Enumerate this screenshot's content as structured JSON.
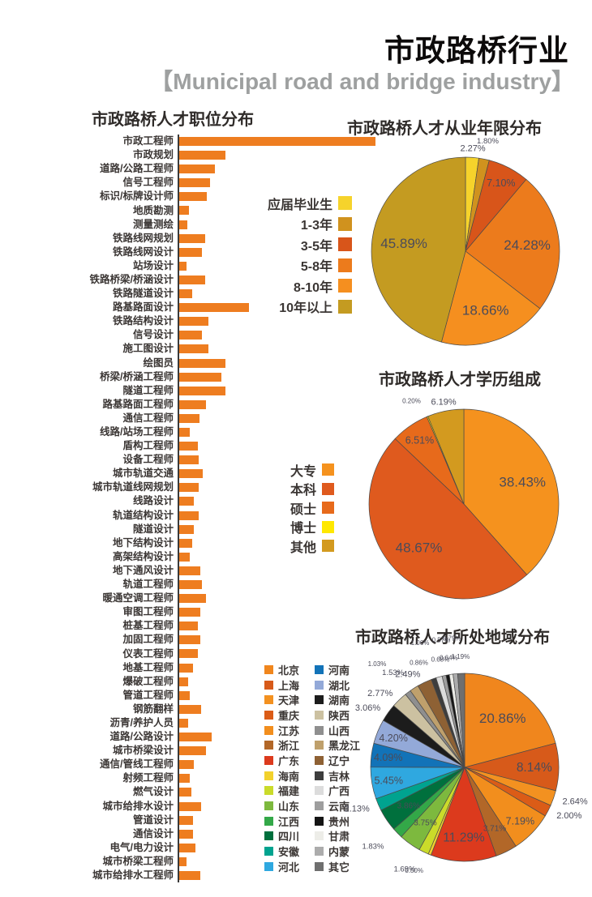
{
  "header": {
    "title": "市政路桥行业",
    "subtitle": "【Municipal road and bridge industry】"
  },
  "colors": {
    "bar": "#ee7d20",
    "axis": "#3a3a3a",
    "section_title": "#2f2b29",
    "title": "#0c0a0a",
    "subtitle": "#9ea0a0",
    "pct_label": "#4b4b59"
  },
  "chart_data": [
    {
      "id": "positions",
      "type": "bar",
      "orientation": "horizontal",
      "title": "市政路桥人才职位分布",
      "note": "no numeric axis shown; values are relative bar lengths",
      "bar_color": "#ee7d20",
      "categories": [
        "市政工程师",
        "市政规划",
        "道路/公路工程师",
        "信号工程师",
        "标识/标牌设计师",
        "地质勘测",
        "测量测绘",
        "铁路线网规划",
        "铁路线网设计",
        "站场设计",
        "铁路桥梁/桥涵设计",
        "铁路隧道设计",
        "路基路面设计",
        "铁路结构设计",
        "信号设计",
        "施工图设计",
        "绘图员",
        "桥梁/桥涵工程师",
        "隧道工程师",
        "路基路面工程师",
        "通信工程师",
        "线路/站场工程师",
        "盾构工程师",
        "设备工程师",
        "城市轨道交通",
        "城市轨道线网规划",
        "线路设计",
        "轨道结构设计",
        "隧道设计",
        "地下结构设计",
        "高架结构设计",
        "地下通风设计",
        "轨道工程师",
        "暖通空调工程师",
        "审图工程师",
        "桩基工程师",
        "加固工程师",
        "仪表工程师",
        "地基工程师",
        "爆破工程师",
        "管道工程师",
        "钢筋翻样",
        "沥青/养护人员",
        "道路/公路设计",
        "城市桥梁设计",
        "通信/管线工程师",
        "射频工程师",
        "燃气设计",
        "城市给排水设计",
        "管道设计",
        "通信设计",
        "电气/电力设计",
        "城市桥梁工程师",
        "城市给排水工程师"
      ],
      "values": [
        242,
        57,
        44,
        38,
        34,
        12,
        10,
        32,
        28,
        9,
        32,
        16,
        86,
        36,
        28,
        36,
        57,
        52,
        57,
        33,
        25,
        13,
        23,
        24,
        29,
        24,
        18,
        24,
        18,
        16,
        13,
        26,
        28,
        33,
        26,
        23,
        26,
        23,
        17,
        11,
        13,
        27,
        11,
        40,
        33,
        18,
        13,
        15,
        27,
        17,
        17,
        20,
        9,
        26
      ]
    },
    {
      "id": "years",
      "type": "pie",
      "title": "市政路桥人才从业年限分布",
      "legend_position": "left",
      "slices": [
        {
          "label": "应届毕业生",
          "value": 2.27,
          "color": "#f6d32b"
        },
        {
          "label": "1-3年",
          "value": 1.8,
          "color": "#d0921e"
        },
        {
          "label": "3-5年",
          "value": 7.1,
          "color": "#d8551a"
        },
        {
          "label": "5-8年",
          "value": 24.28,
          "color": "#ec7b1c"
        },
        {
          "label": "8-10年",
          "value": 18.66,
          "color": "#f58f1f"
        },
        {
          "label": "10年以上",
          "value": 45.89,
          "color": "#c49b21"
        }
      ]
    },
    {
      "id": "edu",
      "type": "pie",
      "title": "市政路桥人才学历组成",
      "legend_position": "left",
      "slices": [
        {
          "label": "大专",
          "value": 38.43,
          "color": "#f5921e"
        },
        {
          "label": "本科",
          "value": 48.67,
          "color": "#df5a1e"
        },
        {
          "label": "硕士",
          "value": 6.51,
          "color": "#e76a1b"
        },
        {
          "label": "博士",
          "value": 0.2,
          "color": "#ffe800"
        },
        {
          "label": "其他",
          "value": 6.19,
          "color": "#d39a1f"
        }
      ]
    },
    {
      "id": "region",
      "type": "pie",
      "title": "市政路桥人才所处地域分布",
      "legend_position": "left",
      "legend_columns": 2,
      "slices": [
        {
          "label": "北京",
          "value": 20.86,
          "color": "#f0861d"
        },
        {
          "label": "上海",
          "value": 8.14,
          "color": "#d75a1a"
        },
        {
          "label": "天津",
          "value": 2.64,
          "color": "#f39120"
        },
        {
          "label": "重庆",
          "value": 2.0,
          "color": "#db5c17"
        },
        {
          "label": "江苏",
          "value": 7.19,
          "color": "#f28e1d"
        },
        {
          "label": "浙江",
          "value": 3.71,
          "color": "#b26728"
        },
        {
          "label": "广东",
          "value": 11.29,
          "color": "#dc3a1d"
        },
        {
          "label": "海南",
          "value": 0.5,
          "color": "#f2d12c"
        },
        {
          "label": "福建",
          "value": 1.69,
          "color": "#cadb2a"
        },
        {
          "label": "山东",
          "value": 3.75,
          "color": "#7db93e"
        },
        {
          "label": "江西",
          "value": 1.83,
          "color": "#33a848"
        },
        {
          "label": "四川",
          "value": 3.86,
          "color": "#00703d"
        },
        {
          "label": "安徽",
          "value": 2.13,
          "color": "#00a38f"
        },
        {
          "label": "河北",
          "value": 5.45,
          "color": "#2fa8e0"
        },
        {
          "label": "河南",
          "value": 4.09,
          "color": "#1273b8"
        },
        {
          "label": "湖北",
          "value": 4.2,
          "color": "#93a9d8"
        },
        {
          "label": "湖南",
          "value": 3.06,
          "color": "#1c1c1c"
        },
        {
          "label": "陕西",
          "value": 2.77,
          "color": "#ccc1a1"
        },
        {
          "label": "山西",
          "value": 1.03,
          "color": "#8f8f8f"
        },
        {
          "label": "黑龙江",
          "value": 1.53,
          "color": "#bfa06c"
        },
        {
          "label": "辽宁",
          "value": 2.49,
          "color": "#8e6134"
        },
        {
          "label": "吉林",
          "value": 0.86,
          "color": "#3d3d3d"
        },
        {
          "label": "广西",
          "value": 1.06,
          "color": "#dcdcdc"
        },
        {
          "label": "云南",
          "value": 0.68,
          "color": "#9e9e9e"
        },
        {
          "label": "贵州",
          "value": 0.57,
          "color": "#141414"
        },
        {
          "label": "甘肃",
          "value": 0.64,
          "color": "#edede8"
        },
        {
          "label": "内蒙",
          "value": 0.79,
          "color": "#acacac"
        },
        {
          "label": "其它",
          "value": 1.19,
          "color": "#6f6f6f"
        }
      ]
    }
  ]
}
